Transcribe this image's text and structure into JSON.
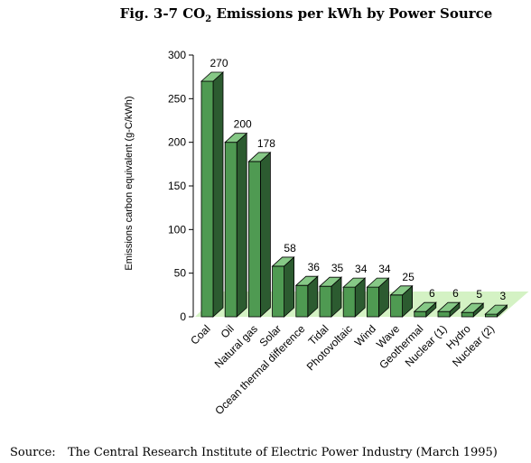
{
  "chart_data": {
    "type": "bar",
    "title_prefix": "Fig. 3-7 CO",
    "title_sub": "2",
    "title_suffix": " Emissions per kWh by Power Source",
    "ylabel": "Emissions carbon equivalent (g-C/kWh)",
    "ylim": [
      0,
      300
    ],
    "yticks": [
      0,
      50,
      100,
      150,
      200,
      250,
      300
    ],
    "categories": [
      "Coal",
      "Oil",
      "Natural gas",
      "Solar",
      "Ocean thermal difference",
      "Tidal",
      "Photovoltaic",
      "Wind",
      "Wave",
      "Geothermal",
      "Nuclear (1)",
      "Hydro",
      "Nuclear (2)"
    ],
    "values": [
      270,
      200,
      178,
      58,
      36,
      35,
      34,
      34,
      25,
      6,
      6,
      5,
      3
    ],
    "value_labels": [
      "270",
      "200",
      "178",
      "58",
      "36",
      "35",
      "34",
      "34",
      "25",
      "6",
      "6",
      "5",
      "3"
    ],
    "colors": {
      "front": "#4f9a52",
      "side": "#2c5b30",
      "top": "#86c886",
      "floor": "#d4f2c4",
      "axis": "#000000"
    }
  },
  "source": {
    "label": "Source:",
    "text": "The Central Research Institute of Electric Power Industry (March 1995)"
  }
}
